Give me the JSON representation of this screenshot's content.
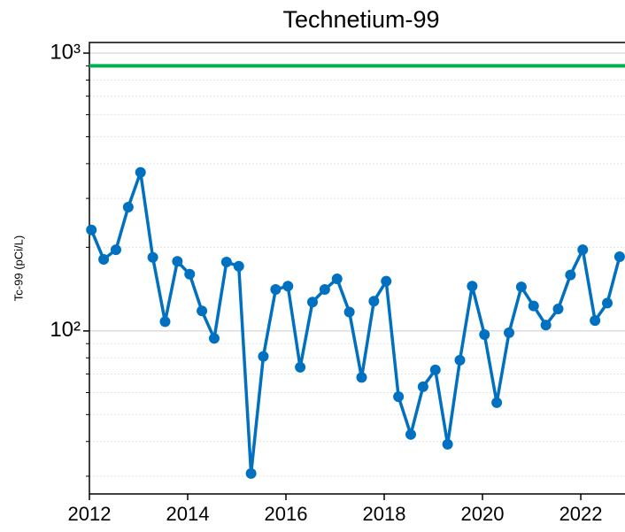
{
  "chart_data": {
    "type": "line",
    "title": "Technetium-99",
    "ylabel": "Tc-99 (pCi/L)",
    "log_y": true,
    "x": [
      2012.04,
      2012.29,
      2012.54,
      2012.79,
      2013.04,
      2013.29,
      2013.54,
      2013.79,
      2014.04,
      2014.29,
      2014.54,
      2014.79,
      2015.04,
      2015.29,
      2015.54,
      2015.79,
      2016.04,
      2016.29,
      2016.54,
      2016.79,
      2017.04,
      2017.29,
      2017.54,
      2017.79,
      2018.04,
      2018.29,
      2018.54,
      2018.79,
      2019.04,
      2019.29,
      2019.54,
      2019.79,
      2020.04,
      2020.29,
      2020.54,
      2020.79,
      2021.04,
      2021.29,
      2021.54,
      2021.79,
      2022.04,
      2022.29,
      2022.54,
      2022.79
    ],
    "series": [
      {
        "color": "#0070c0",
        "values": [
          231,
          181,
          196,
          279,
          372,
          184,
          108,
          178,
          160,
          118,
          94,
          177,
          171,
          30.7,
          81,
          141,
          145,
          74,
          127,
          141,
          154,
          117,
          68,
          128,
          151,
          58,
          42.4,
          63,
          72.4,
          39.1,
          78.5,
          145,
          97,
          55.2,
          98.5,
          144,
          123,
          105,
          120,
          159,
          196,
          109,
          126,
          185
        ]
      }
    ],
    "reference_lines": [
      {
        "value": 900,
        "color": "#00b050"
      }
    ],
    "xlim": [
      2012,
      2022.9
    ],
    "xticks": [
      2012,
      2014,
      2016,
      2018,
      2020,
      2022
    ],
    "ylim": [
      25.9,
      1092
    ],
    "yticks": [
      {
        "value": 100,
        "label": "10²"
      },
      {
        "value": 1000,
        "label": "10³"
      }
    ],
    "yminorticks": [
      30,
      40,
      50,
      60,
      70,
      80,
      90,
      200,
      300,
      400,
      500,
      600,
      700,
      800,
      900
    ],
    "grid": true
  }
}
